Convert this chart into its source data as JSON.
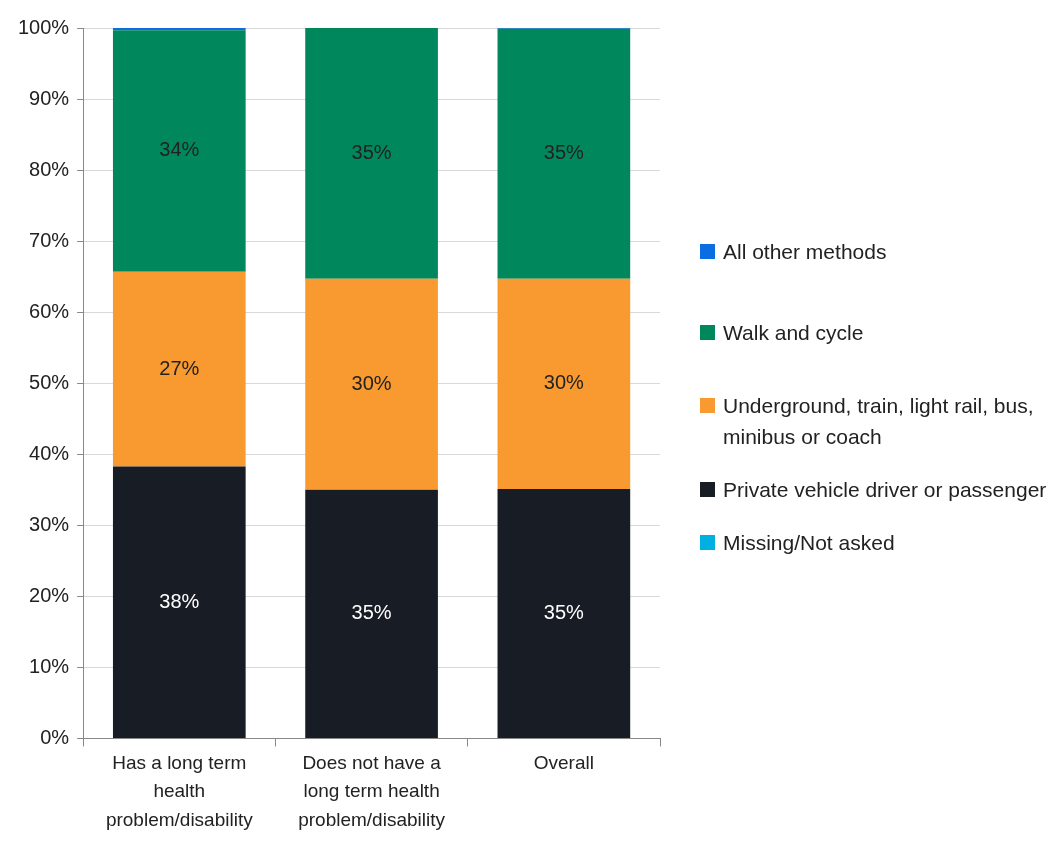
{
  "chart_data": {
    "type": "bar",
    "stacked": true,
    "categories": [
      "Has a long term health problem/disability",
      "Does not have a long term health problem/disability",
      "Overall"
    ],
    "series": [
      {
        "name": "Missing/Not asked",
        "color": "#00b0e0",
        "values": [
          0,
          0,
          0
        ]
      },
      {
        "name": "Private vehicle driver or passenger",
        "color": "#181c24",
        "values": [
          38.3,
          35,
          35.1
        ],
        "value_labels": [
          "38%",
          "35%",
          "35%"
        ]
      },
      {
        "name": "Underground, train, light rail, bus, minibus or coach",
        "color": "#f89a30",
        "values": [
          27.4,
          29.7,
          29.6
        ],
        "value_labels": [
          "27%",
          "30%",
          "30%"
        ]
      },
      {
        "name": "Walk and cycle",
        "color": "#00875c",
        "values": [
          34,
          35.3,
          35.2
        ],
        "value_labels": [
          "34%",
          "35%",
          "35%"
        ]
      },
      {
        "name": "All other methods",
        "color": "#0a6ee0",
        "values": [
          0.3,
          0,
          0.1
        ]
      }
    ],
    "ylim": [
      0,
      100
    ],
    "yticks": [
      {
        "value": 0,
        "label": "0%"
      },
      {
        "value": 10,
        "label": "10%"
      },
      {
        "value": 20,
        "label": "20%"
      },
      {
        "value": 30,
        "label": "30%"
      },
      {
        "value": 40,
        "label": "40%"
      },
      {
        "value": 50,
        "label": "50%"
      },
      {
        "value": 60,
        "label": "60%"
      },
      {
        "value": 70,
        "label": "70%"
      },
      {
        "value": 80,
        "label": "80%"
      },
      {
        "value": 90,
        "label": "90%"
      },
      {
        "value": 100,
        "label": "100%"
      }
    ],
    "grid": "y",
    "legend": "right"
  }
}
